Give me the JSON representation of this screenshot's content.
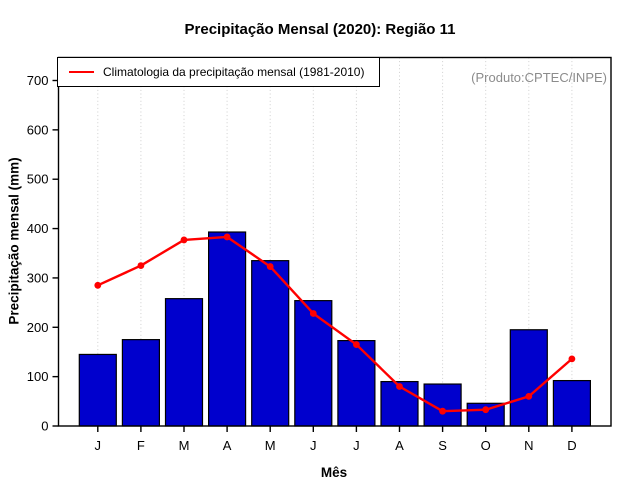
{
  "chart_data": {
    "type": "bar",
    "title": "Precipitação Mensal (2020): Região 11",
    "xlabel": "Mês",
    "ylabel": "Precipitação mensal (mm)",
    "categories": [
      "J",
      "F",
      "M",
      "A",
      "M",
      "J",
      "J",
      "A",
      "S",
      "O",
      "N",
      "D"
    ],
    "series": [
      {
        "name": "Precipitação Mensal (2020)",
        "type": "bar",
        "color": "#0000CD",
        "values": [
          145,
          175,
          258,
          393,
          335,
          254,
          173,
          90,
          85,
          46,
          195,
          92
        ]
      },
      {
        "name": "Climatologia da precipitação mensal (1981-2010)",
        "type": "line",
        "color": "#FF0000",
        "values": [
          285,
          325,
          377,
          383,
          323,
          228,
          165,
          80,
          30,
          33,
          60,
          136
        ]
      }
    ],
    "ylim": [
      0,
      700
    ],
    "yticks": [
      0,
      100,
      200,
      300,
      400,
      500,
      600,
      700
    ],
    "grid": "vertical-dotted",
    "legend_position": "topleft"
  },
  "legend": {
    "label": "Climatologia da precipitação mensal (1981-2010)"
  },
  "annotation": {
    "text": "(Produto:CPTEC/INPE)",
    "color": "#8c8c8c"
  },
  "colors": {
    "bar_fill": "#0000CD",
    "bar_border": "#000000",
    "line": "#FF0000",
    "grid": "#cfcfcf",
    "axis": "#000000",
    "annotation_text": "#8c8c8c"
  }
}
